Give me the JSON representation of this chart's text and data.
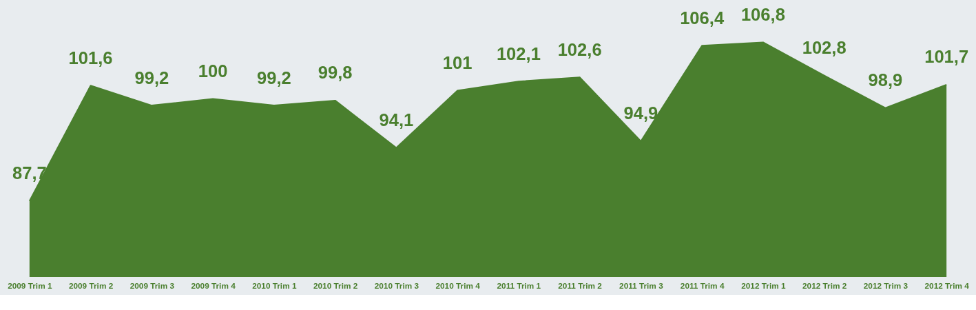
{
  "chart_data": {
    "type": "area",
    "categories": [
      "2009 Trim 1",
      "2009 Trim 2",
      "2009 Trim 3",
      "2009 Trim 4",
      "2010 Trim 1",
      "2010 Trim 2",
      "2010 Trim 3",
      "2010 Trim 4",
      "2011 Trim 1",
      "2011 Trim 2",
      "2011 Trim 3",
      "2011 Trim 4",
      "2012 Trim 1",
      "2012 Trim 2",
      "2012 Trim 3",
      "2012 Trim 4"
    ],
    "series": [
      {
        "color": "#4a7f2e",
        "values": [
          87.7,
          101.6,
          99.2,
          100,
          99.2,
          99.8,
          94.1,
          101,
          102.1,
          102.6,
          94.9,
          106.4,
          106.8,
          102.8,
          98.9,
          101.7
        ],
        "value_labels": [
          "87,7",
          "101,6",
          "99,2",
          "100",
          "99,2",
          "99,8",
          "94,1",
          "101",
          "102,1",
          "102,6",
          "94,9",
          "106,4",
          "106,8",
          "102,8",
          "98,9",
          "101,7"
        ]
      }
    ]
  }
}
